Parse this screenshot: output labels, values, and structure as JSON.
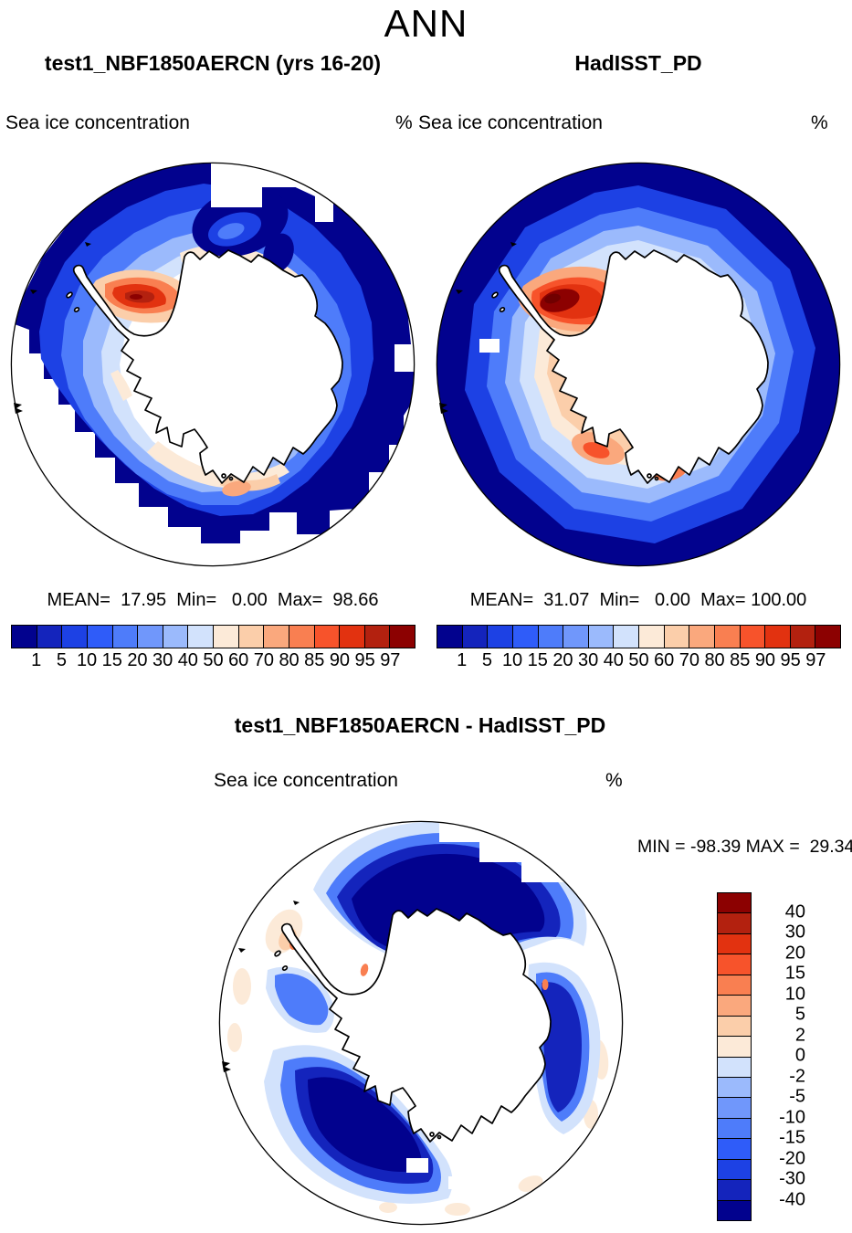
{
  "figure": {
    "season_title": "ANN",
    "panel_titles": {
      "model": "test1_NBF1850AERCN (yrs 16-20)",
      "obs": "HadISST_PD",
      "diff": "test1_NBF1850AERCN - HadISST_PD"
    },
    "field_label": "Sea ice concentration",
    "units": "%",
    "stats_model": "MEAN=  17.95  Min=   0.00  Max=  98.66",
    "stats_obs": "MEAN=  31.07  Min=   0.00  Max= 100.00",
    "stats_diff": "MIN = -98.39 MAX =  29.34"
  },
  "chart_data": [
    {
      "type": "heatmap",
      "panel": "model",
      "title": "test1_NBF1850AERCN (yrs 16-20)",
      "season": "ANN",
      "variable": "Sea ice concentration",
      "units": "%",
      "projection": "south polar stereographic",
      "stats": {
        "mean": 17.95,
        "min": 0.0,
        "max": 98.66
      },
      "levels": [
        1,
        5,
        10,
        15,
        20,
        30,
        40,
        50,
        60,
        70,
        80,
        85,
        90,
        95,
        97
      ],
      "palette": [
        "#02028E",
        "#1424BC",
        "#1D41E4",
        "#2F5CF9",
        "#4E7CFA",
        "#7097FB",
        "#9BBAFC",
        "#D2E2FC",
        "#FCEAD8",
        "#FBCEAA",
        "#FAA87D",
        "#F97F51",
        "#F7532B",
        "#E23210",
        "#B3210F",
        "#8C0101"
      ],
      "colorbar": "horizontal-bottom"
    },
    {
      "type": "heatmap",
      "panel": "obs",
      "title": "HadISST_PD",
      "season": "ANN",
      "variable": "Sea ice concentration",
      "units": "%",
      "projection": "south polar stereographic",
      "stats": {
        "mean": 31.07,
        "min": 0.0,
        "max": 100.0
      },
      "levels": [
        1,
        5,
        10,
        15,
        20,
        30,
        40,
        50,
        60,
        70,
        80,
        85,
        90,
        95,
        97
      ],
      "palette": [
        "#02028E",
        "#1424BC",
        "#1D41E4",
        "#2F5CF9",
        "#4E7CFA",
        "#7097FB",
        "#9BBAFC",
        "#D2E2FC",
        "#FCEAD8",
        "#FBCEAA",
        "#FAA87D",
        "#F97F51",
        "#F7532B",
        "#E23210",
        "#B3210F",
        "#8C0101"
      ],
      "extra_core_color": "#700000",
      "colorbar": "horizontal-bottom"
    },
    {
      "type": "heatmap",
      "panel": "difference",
      "title": "test1_NBF1850AERCN - HadISST_PD",
      "season": "ANN",
      "variable": "Sea ice concentration",
      "units": "%",
      "projection": "south polar stereographic",
      "stats": {
        "min": -98.39,
        "max": 29.34
      },
      "levels": [
        40,
        30,
        20,
        15,
        10,
        5,
        2,
        0,
        -2,
        -5,
        -10,
        -15,
        -20,
        -30,
        -40
      ],
      "palette": [
        "#8C0101",
        "#B3210F",
        "#E23210",
        "#F7532B",
        "#F97F51",
        "#FAA87D",
        "#FBCEAA",
        "#FCEAD8",
        "#D2E2FC",
        "#9BBAFC",
        "#7097FB",
        "#4E7CFA",
        "#2F5CF9",
        "#1D41E4",
        "#1424BC",
        "#02028E"
      ],
      "colorbar": "vertical-right"
    }
  ]
}
